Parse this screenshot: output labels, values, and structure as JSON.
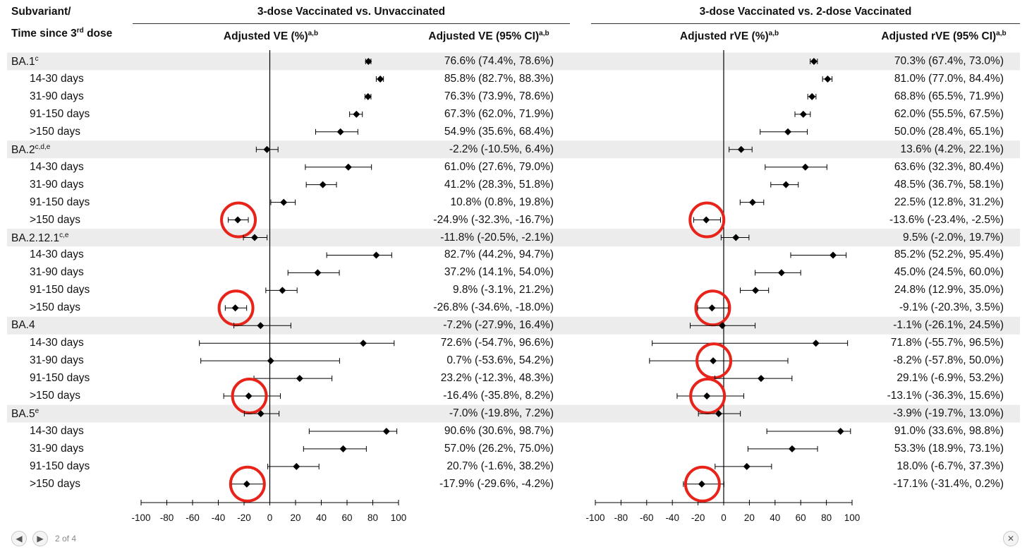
{
  "header": {
    "row_label_line1": "Subvariant/",
    "row_label_line2_pre": "Time since 3",
    "row_label_line2_sup": "rd",
    "row_label_line2_post": " dose"
  },
  "panels": [
    {
      "title": "3-dose Vaccinated vs. Unvaccinated",
      "plot_col_label": "Adjusted VE (%)",
      "plot_col_sup": "a,b",
      "ci_col_label": "Adjusted VE (95% CI)",
      "ci_col_sup": "a,b"
    },
    {
      "title": "3-dose Vaccinated vs. 2-dose Vaccinated",
      "plot_col_label": "Adjusted rVE (%)",
      "plot_col_sup": "a,b",
      "ci_col_label": "Adjusted rVE (95% CI)",
      "ci_col_sup": "a,b"
    }
  ],
  "chart_data": [
    {
      "type": "scatter",
      "subtype": "forest-plot",
      "title": "3-dose Vaccinated vs. Unvaccinated",
      "xlabel": "Adjusted VE (%)",
      "xlim": [
        -100,
        100
      ],
      "xticks": [
        "-100",
        "-80",
        "-60",
        "-40",
        "-20",
        "0",
        "20",
        "40",
        "60",
        "80",
        "100"
      ],
      "reference_line_x": 0,
      "rows": [
        {
          "label": "BA.1",
          "sup": "c",
          "group": true,
          "est": 76.6,
          "lo": 74.4,
          "hi": 78.6,
          "text": "76.6% (74.4%, 78.6%)",
          "circled": false
        },
        {
          "label": "14-30 days",
          "group": false,
          "est": 85.8,
          "lo": 82.7,
          "hi": 88.3,
          "text": "85.8% (82.7%, 88.3%)",
          "circled": false
        },
        {
          "label": "31-90 days",
          "group": false,
          "est": 76.3,
          "lo": 73.9,
          "hi": 78.6,
          "text": "76.3% (73.9%, 78.6%)",
          "circled": false
        },
        {
          "label": "91-150 days",
          "group": false,
          "est": 67.3,
          "lo": 62.0,
          "hi": 71.9,
          "text": "67.3% (62.0%, 71.9%)",
          "circled": false
        },
        {
          "label": ">150 days",
          "group": false,
          "est": 54.9,
          "lo": 35.6,
          "hi": 68.4,
          "text": "54.9% (35.6%, 68.4%)",
          "circled": false
        },
        {
          "label": "BA.2",
          "sup": "c,d,e",
          "group": true,
          "est": -2.2,
          "lo": -10.5,
          "hi": 6.4,
          "text": "-2.2% (-10.5%, 6.4%)",
          "circled": false
        },
        {
          "label": "14-30 days",
          "group": false,
          "est": 61.0,
          "lo": 27.6,
          "hi": 79.0,
          "text": "61.0% (27.6%, 79.0%)",
          "circled": false
        },
        {
          "label": "31-90 days",
          "group": false,
          "est": 41.2,
          "lo": 28.3,
          "hi": 51.8,
          "text": "41.2% (28.3%, 51.8%)",
          "circled": false
        },
        {
          "label": "91-150 days",
          "group": false,
          "est": 10.8,
          "lo": 0.8,
          "hi": 19.8,
          "text": "10.8% (0.8%, 19.8%)",
          "circled": false
        },
        {
          "label": ">150 days",
          "group": false,
          "est": -24.9,
          "lo": -32.3,
          "hi": -16.7,
          "text": "-24.9% (-32.3%, -16.7%)",
          "circled": true
        },
        {
          "label": "BA.2.12.1",
          "sup": "c,e",
          "group": true,
          "est": -11.8,
          "lo": -20.5,
          "hi": -2.1,
          "text": "-11.8% (-20.5%, -2.1%)",
          "circled": false
        },
        {
          "label": "14-30 days",
          "group": false,
          "est": 82.7,
          "lo": 44.2,
          "hi": 94.7,
          "text": "82.7% (44.2%, 94.7%)",
          "circled": false
        },
        {
          "label": "31-90 days",
          "group": false,
          "est": 37.2,
          "lo": 14.1,
          "hi": 54.0,
          "text": "37.2% (14.1%, 54.0%)",
          "circled": false
        },
        {
          "label": "91-150 days",
          "group": false,
          "est": 9.8,
          "lo": -3.1,
          "hi": 21.2,
          "text": "9.8% (-3.1%, 21.2%)",
          "circled": false
        },
        {
          "label": ">150 days",
          "group": false,
          "est": -26.8,
          "lo": -34.6,
          "hi": -18.0,
          "text": "-26.8% (-34.6%, -18.0%)",
          "circled": true
        },
        {
          "label": "BA.4",
          "group": true,
          "est": -7.2,
          "lo": -27.9,
          "hi": 16.4,
          "text": "-7.2% (-27.9%, 16.4%)",
          "circled": false
        },
        {
          "label": "14-30 days",
          "group": false,
          "est": 72.6,
          "lo": -54.7,
          "hi": 96.6,
          "text": "72.6% (-54.7%, 96.6%)",
          "circled": false
        },
        {
          "label": "31-90 days",
          "group": false,
          "est": 0.7,
          "lo": -53.6,
          "hi": 54.2,
          "text": "0.7% (-53.6%, 54.2%)",
          "circled": false
        },
        {
          "label": "91-150 days",
          "group": false,
          "est": 23.2,
          "lo": -12.3,
          "hi": 48.3,
          "text": "23.2% (-12.3%, 48.3%)",
          "circled": false
        },
        {
          "label": ">150 days",
          "group": false,
          "est": -16.4,
          "lo": -35.8,
          "hi": 8.2,
          "text": "-16.4% (-35.8%, 8.2%)",
          "circled": true
        },
        {
          "label": "BA.5",
          "sup": "e",
          "group": true,
          "est": -7.0,
          "lo": -19.8,
          "hi": 7.2,
          "text": "-7.0% (-19.8%, 7.2%)",
          "circled": false
        },
        {
          "label": "14-30 days",
          "group": false,
          "est": 90.6,
          "lo": 30.6,
          "hi": 98.7,
          "text": "90.6% (30.6%, 98.7%)",
          "circled": false
        },
        {
          "label": "31-90 days",
          "group": false,
          "est": 57.0,
          "lo": 26.2,
          "hi": 75.0,
          "text": "57.0% (26.2%, 75.0%)",
          "circled": false
        },
        {
          "label": "91-150 days",
          "group": false,
          "est": 20.7,
          "lo": -1.6,
          "hi": 38.2,
          "text": "20.7% (-1.6%, 38.2%)",
          "circled": false
        },
        {
          "label": ">150 days",
          "group": false,
          "est": -17.9,
          "lo": -29.6,
          "hi": -4.2,
          "text": "-17.9% (-29.6%, -4.2%)",
          "circled": true
        }
      ]
    },
    {
      "type": "scatter",
      "subtype": "forest-plot",
      "title": "3-dose Vaccinated vs. 2-dose Vaccinated",
      "xlabel": "Adjusted rVE (%)",
      "xlim": [
        -100,
        100
      ],
      "xticks": [
        "-100",
        "-80",
        "-60",
        "-40",
        "-20",
        "0",
        "20",
        "40",
        "60",
        "80",
        "100"
      ],
      "reference_line_x": 0,
      "rows": [
        {
          "label": "BA.1",
          "group": true,
          "est": 70.3,
          "lo": 67.4,
          "hi": 73.0,
          "text": "70.3% (67.4%, 73.0%)",
          "circled": false
        },
        {
          "label": "14-30 days",
          "group": false,
          "est": 81.0,
          "lo": 77.0,
          "hi": 84.4,
          "text": "81.0% (77.0%, 84.4%)",
          "circled": false
        },
        {
          "label": "31-90 days",
          "group": false,
          "est": 68.8,
          "lo": 65.5,
          "hi": 71.9,
          "text": "68.8% (65.5%, 71.9%)",
          "circled": false
        },
        {
          "label": "91-150 days",
          "group": false,
          "est": 62.0,
          "lo": 55.5,
          "hi": 67.5,
          "text": "62.0% (55.5%, 67.5%)",
          "circled": false
        },
        {
          "label": ">150 days",
          "group": false,
          "est": 50.0,
          "lo": 28.4,
          "hi": 65.1,
          "text": "50.0% (28.4%, 65.1%)",
          "circled": false
        },
        {
          "label": "BA.2",
          "group": true,
          "est": 13.6,
          "lo": 4.2,
          "hi": 22.1,
          "text": "13.6% (4.2%, 22.1%)",
          "circled": false
        },
        {
          "label": "14-30 days",
          "group": false,
          "est": 63.6,
          "lo": 32.3,
          "hi": 80.4,
          "text": "63.6% (32.3%, 80.4%)",
          "circled": false
        },
        {
          "label": "31-90 days",
          "group": false,
          "est": 48.5,
          "lo": 36.7,
          "hi": 58.1,
          "text": "48.5% (36.7%, 58.1%)",
          "circled": false
        },
        {
          "label": "91-150 days",
          "group": false,
          "est": 22.5,
          "lo": 12.8,
          "hi": 31.2,
          "text": "22.5% (12.8%, 31.2%)",
          "circled": false
        },
        {
          "label": ">150 days",
          "group": false,
          "est": -13.6,
          "lo": -23.4,
          "hi": -2.5,
          "text": "-13.6% (-23.4%, -2.5%)",
          "circled": true
        },
        {
          "label": "BA.2.12.1",
          "group": true,
          "est": 9.5,
          "lo": -2.0,
          "hi": 19.7,
          "text": "9.5% (-2.0%, 19.7%)",
          "circled": false
        },
        {
          "label": "14-30 days",
          "group": false,
          "est": 85.2,
          "lo": 52.2,
          "hi": 95.4,
          "text": "85.2% (52.2%, 95.4%)",
          "circled": false
        },
        {
          "label": "31-90 days",
          "group": false,
          "est": 45.0,
          "lo": 24.5,
          "hi": 60.0,
          "text": "45.0% (24.5%, 60.0%)",
          "circled": false
        },
        {
          "label": "91-150 days",
          "group": false,
          "est": 24.8,
          "lo": 12.9,
          "hi": 35.0,
          "text": "24.8% (12.9%, 35.0%)",
          "circled": false
        },
        {
          "label": ">150 days",
          "group": false,
          "est": -9.1,
          "lo": -20.3,
          "hi": 3.5,
          "text": "-9.1% (-20.3%, 3.5%)",
          "circled": true
        },
        {
          "label": "BA.4",
          "group": true,
          "est": -1.1,
          "lo": -26.1,
          "hi": 24.5,
          "text": "-1.1% (-26.1%, 24.5%)",
          "circled": false
        },
        {
          "label": "14-30 days",
          "group": false,
          "est": 71.8,
          "lo": -55.7,
          "hi": 96.5,
          "text": "71.8% (-55.7%, 96.5%)",
          "circled": false
        },
        {
          "label": "31-90 days",
          "group": false,
          "est": -8.2,
          "lo": -57.8,
          "hi": 50.0,
          "text": "-8.2% (-57.8%, 50.0%)",
          "circled": true
        },
        {
          "label": "91-150 days",
          "group": false,
          "est": 29.1,
          "lo": -6.9,
          "hi": 53.2,
          "text": "29.1% (-6.9%, 53.2%)",
          "circled": false
        },
        {
          "label": ">150 days",
          "group": false,
          "est": -13.1,
          "lo": -36.3,
          "hi": 15.6,
          "text": "-13.1% (-36.3%, 15.6%)",
          "circled": true
        },
        {
          "label": "BA.5",
          "group": true,
          "est": -3.9,
          "lo": -19.7,
          "hi": 13.0,
          "text": "-3.9% (-19.7%, 13.0%)",
          "circled": false
        },
        {
          "label": "14-30 days",
          "group": false,
          "est": 91.0,
          "lo": 33.6,
          "hi": 98.8,
          "text": "91.0% (33.6%, 98.8%)",
          "circled": false
        },
        {
          "label": "31-90 days",
          "group": false,
          "est": 53.3,
          "lo": 18.9,
          "hi": 73.1,
          "text": "53.3% (18.9%, 73.1%)",
          "circled": false
        },
        {
          "label": "91-150 days",
          "group": false,
          "est": 18.0,
          "lo": -6.7,
          "hi": 37.3,
          "text": "18.0% (-6.7%, 37.3%)",
          "circled": false
        },
        {
          "label": ">150 days",
          "group": false,
          "est": -17.1,
          "lo": -31.4,
          "hi": 0.2,
          "text": "-17.1% (-31.4%, 0.2%)",
          "circled": true
        }
      ]
    }
  ],
  "colors": {
    "band": "#ececec",
    "text": "#111111",
    "marker": "#000000",
    "circle": "#e8231a"
  },
  "footer": {
    "prev_icon": "arrow-left-icon",
    "next_icon": "arrow-right-icon",
    "pager_text": "2 of 4",
    "close_icon": "close-icon"
  }
}
